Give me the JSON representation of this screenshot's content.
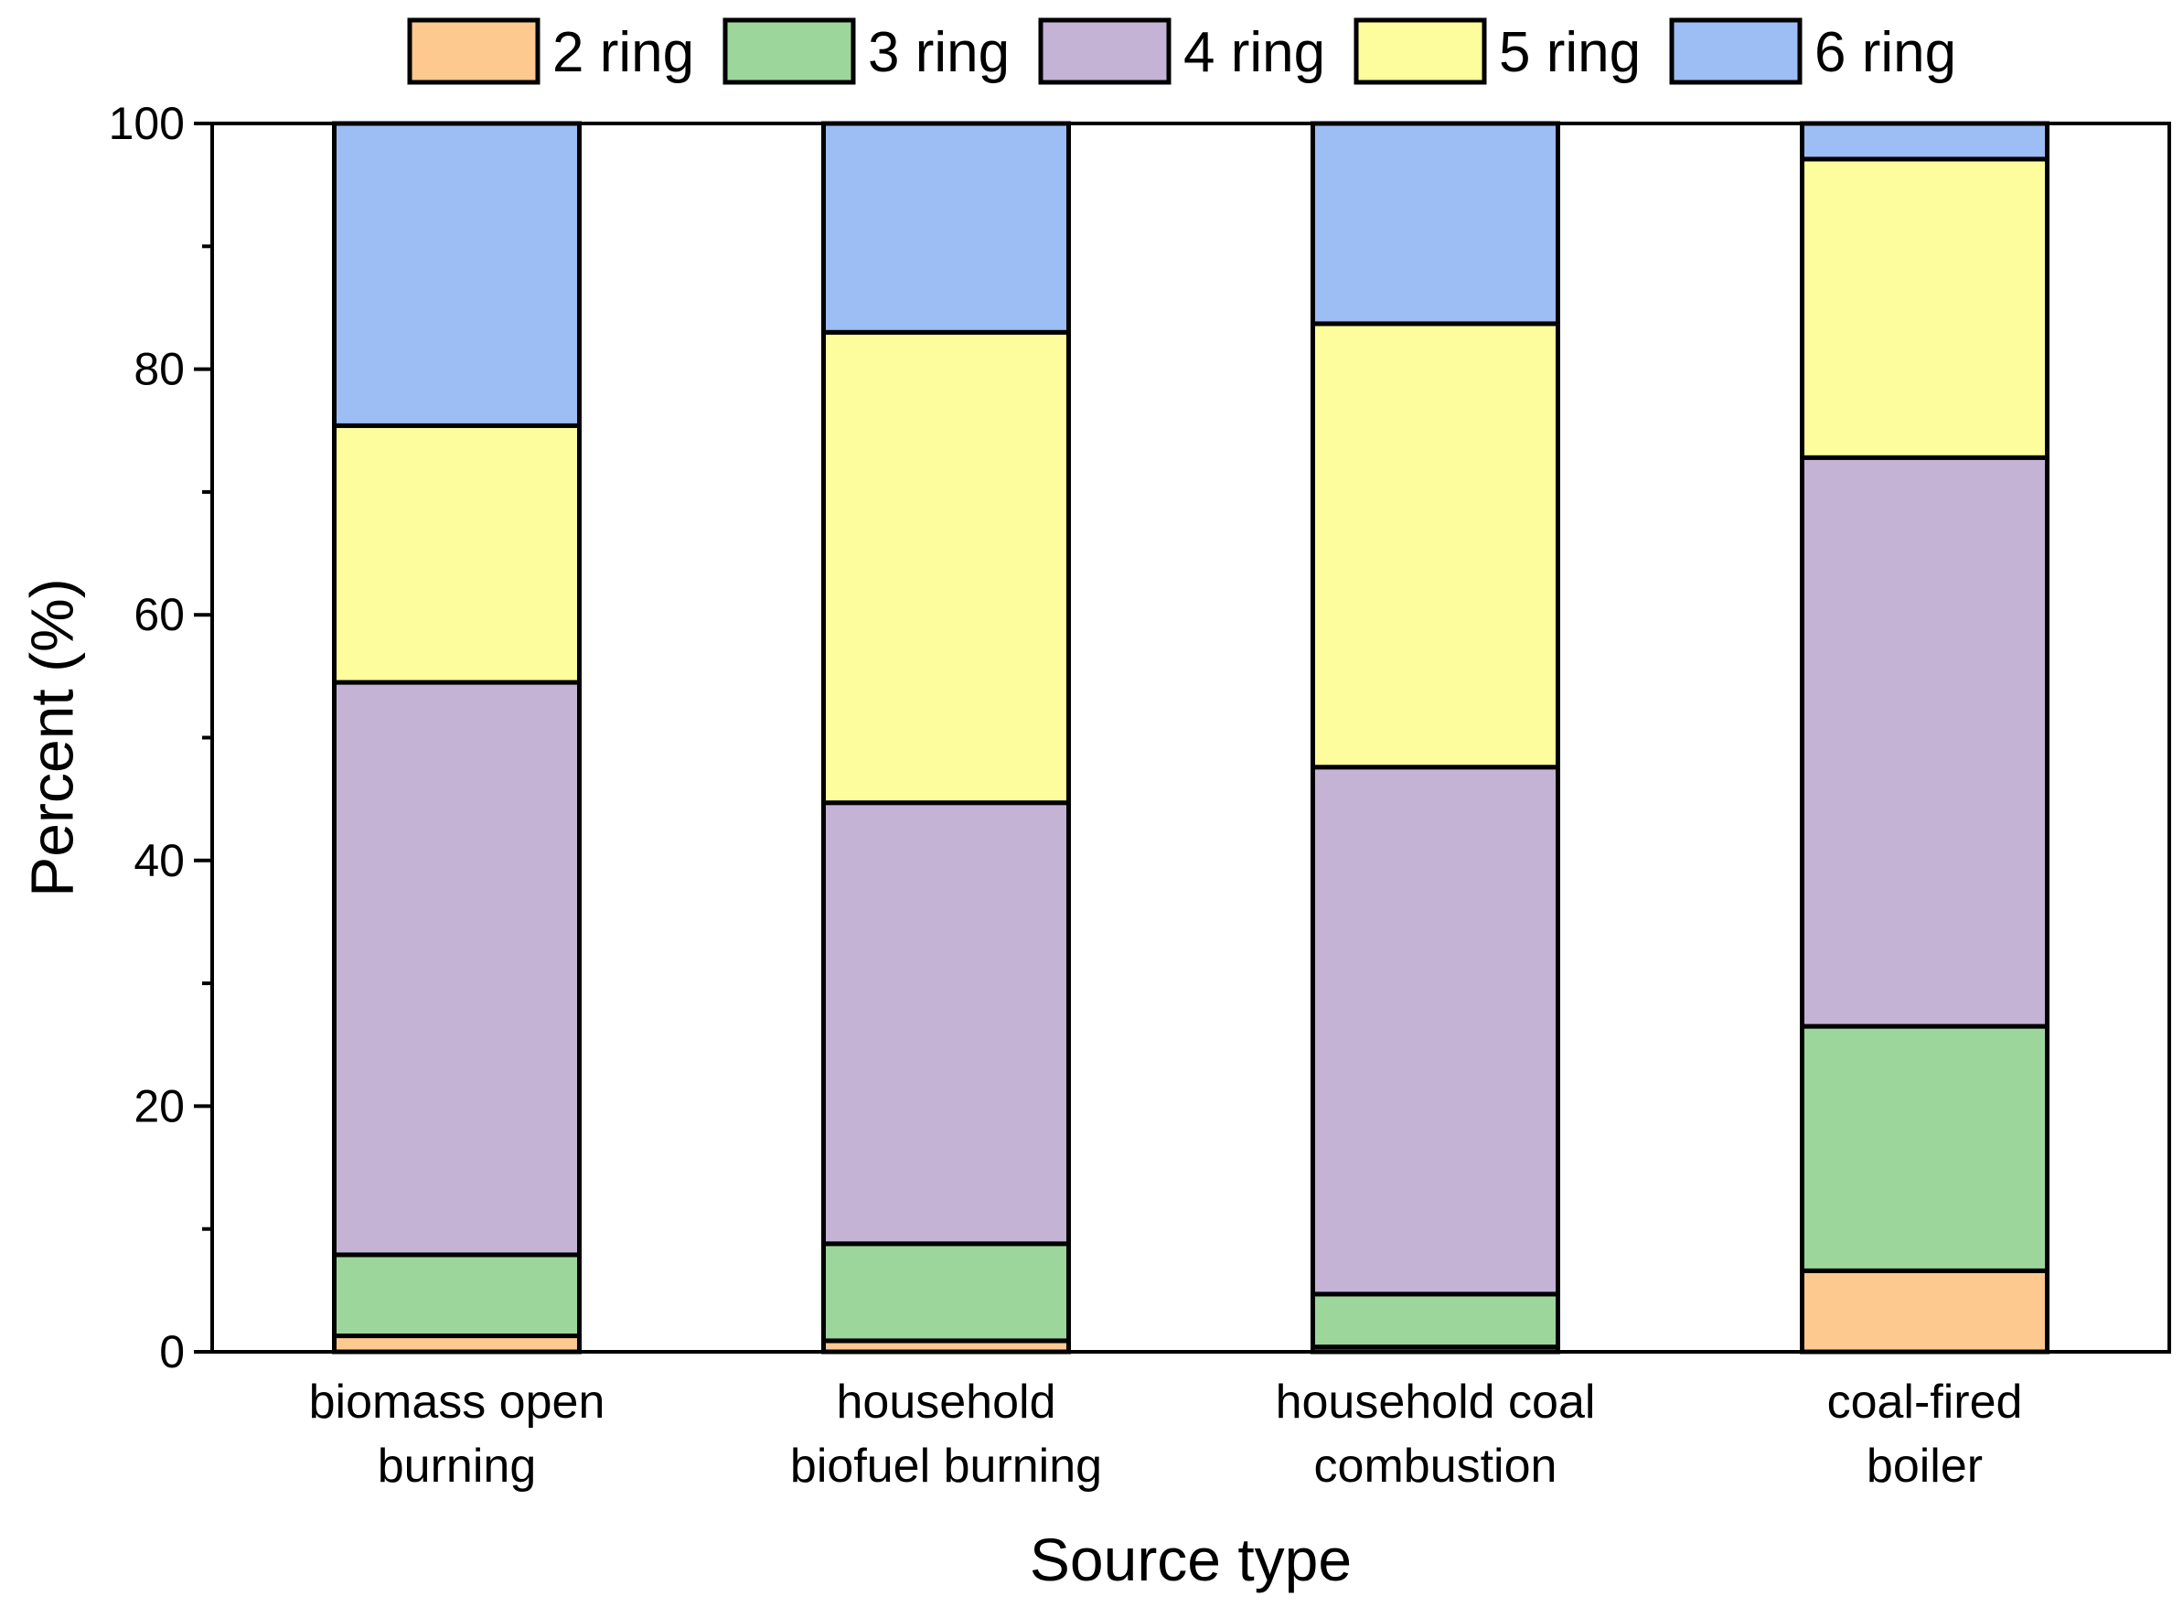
{
  "chart_data": {
    "type": "bar",
    "stacked": true,
    "title": "",
    "xlabel": "Source type",
    "ylabel": "Percent (%)",
    "ylim": [
      0,
      100
    ],
    "yticks": [
      "0",
      "20",
      "40",
      "60",
      "80",
      "100"
    ],
    "categories": [
      [
        "biomass open",
        "burning"
      ],
      [
        "household",
        "biofuel burning"
      ],
      [
        "household coal",
        "combustion"
      ],
      [
        "coal-fired",
        "boiler"
      ]
    ],
    "series": [
      {
        "name": "2 ring",
        "color": "#fdc98e",
        "values": [
          1.3,
          0.9,
          0.4,
          6.6
        ]
      },
      {
        "name": "3 ring",
        "color": "#9dd69b",
        "values": [
          6.6,
          7.9,
          4.3,
          19.9
        ]
      },
      {
        "name": "4 ring",
        "color": "#c5b3d6",
        "values": [
          46.6,
          35.9,
          42.9,
          46.3
        ]
      },
      {
        "name": "5 ring",
        "color": "#fdfd9d",
        "values": [
          20.9,
          38.3,
          36.1,
          24.3
        ]
      },
      {
        "name": "6 ring",
        "color": "#9dbdf5",
        "values": [
          24.6,
          17.0,
          16.3,
          2.9
        ]
      }
    ],
    "legend_position": "top",
    "grid": false
  }
}
